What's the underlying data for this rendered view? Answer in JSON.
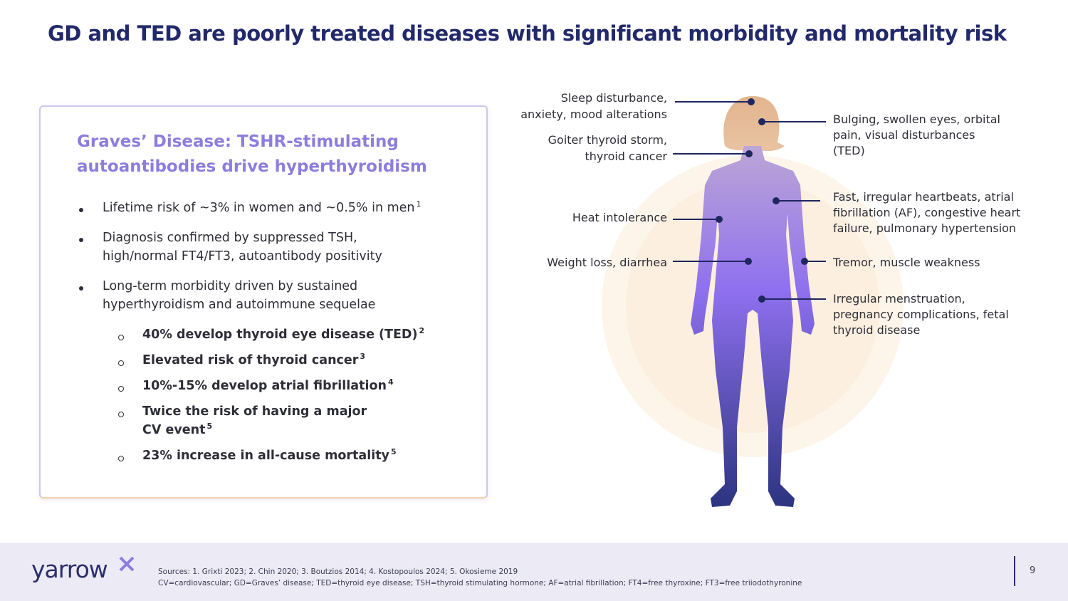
{
  "title": "GD and TED are poorly treated diseases with significant morbidity and mortality risk",
  "card": {
    "heading_lines": [
      "Graves’ Disease: TSHR-stimulating",
      "autoantibodies drive hyperthyroidism"
    ],
    "bullets": [
      {
        "lines": [
          "Lifetime risk of  ~3% in women and ~0.5% in men"
        ],
        "sup": "1"
      },
      {
        "lines": [
          "Diagnosis confirmed by suppressed TSH,",
          "high/normal FT4/FT3, autoantibody positivity"
        ]
      },
      {
        "lines": [
          "Long-term morbidity driven by sustained",
          "hyperthyroidism and autoimmune sequelae"
        ]
      }
    ],
    "sub_bullets": [
      {
        "lines": [
          "40% develop thyroid eye disease (TED)"
        ],
        "sup": "2"
      },
      {
        "lines": [
          "Elevated risk of thyroid cancer"
        ],
        "sup": "3"
      },
      {
        "lines": [
          "10%-15% develop atrial fibrillation"
        ],
        "sup": "4"
      },
      {
        "lines": [
          "Twice the risk of having a major",
          "CV event"
        ],
        "sup": "5"
      },
      {
        "lines": [
          "23% increase in all-cause mortality"
        ],
        "sup": "5"
      }
    ]
  },
  "body_labels": {
    "left": [
      {
        "lines": [
          "Sleep disturbance,",
          "anxiety, mood alterations"
        ]
      },
      {
        "lines": [
          "Goiter thyroid storm,",
          "thyroid cancer"
        ]
      },
      {
        "lines": [
          "Heat intolerance"
        ]
      },
      {
        "lines": [
          "Weight loss, diarrhea"
        ]
      }
    ],
    "right": [
      {
        "lines": [
          "Bulging, swollen eyes, orbital",
          "pain, visual disturbances",
          "(TED)"
        ]
      },
      {
        "lines": [
          "Fast, irregular heartbeats, atrial",
          "fibrillation (AF), congestive heart",
          "failure, pulmonary hypertension"
        ]
      },
      {
        "lines": [
          "Tremor, muscle weakness"
        ]
      },
      {
        "lines": [
          "Irregular menstruation,",
          "pregnancy complications, fetal",
          "thyroid disease"
        ]
      }
    ]
  },
  "footer": {
    "logo": "yarrow",
    "sources": "Sources: 1. Grixti 2023; 2. Chin 2020; 3. Boutzios 2014; 4. Kostopoulos 2024; 5. Okosieme 2019",
    "abbreviations": "CV=cardiovascular; GD=Graves’ disease; TED=thyroid eye disease; TSH=thyroid stimulating hormone; AF=atrial fibrillation; FT4=free thyroxine; FT3=free triiodothyronine",
    "page": "9"
  }
}
